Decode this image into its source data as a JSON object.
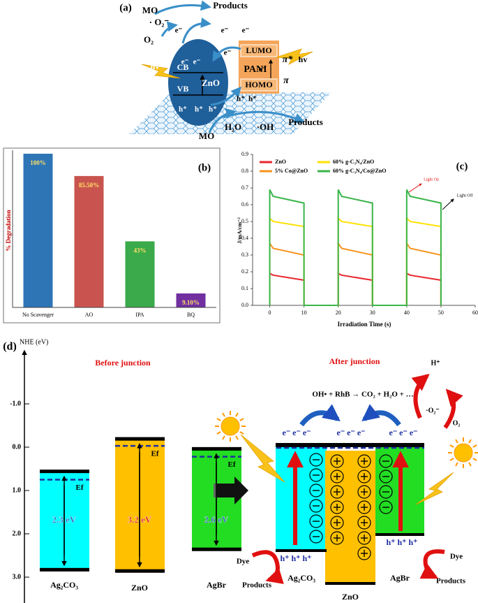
{
  "panel_a": {
    "label": "(a)",
    "mo_top": "MO",
    "superoxide": "· O₂⁻",
    "products_top": "Products",
    "o2": "O₂",
    "electrons": [
      "e⁻",
      "e⁻",
      "e⁻",
      "e⁻",
      "e⁻",
      "e⁻",
      "e⁻"
    ],
    "hv_left": "hv",
    "cb": "CB",
    "vb": "VB",
    "zno": "ZnO",
    "holes": [
      "h⁺",
      "h⁺",
      "h⁺",
      "h⁺",
      "h⁺"
    ],
    "lumo": "LUMO",
    "pani": "PANI",
    "homo": "HOMO",
    "pi_star": "π*",
    "pi": "π",
    "hv_right": "hv",
    "products_bottom": "Products",
    "h2o": "H₂O",
    "oh": "·OH",
    "mo_bottom": "MO"
  },
  "chart_data": [
    {
      "type": "bar",
      "panel_label": "(b)",
      "y_label": "% Degradation",
      "categories": [
        "No Scavenger",
        "AO",
        "IPA",
        "BQ"
      ],
      "values": [
        100,
        85.5,
        43,
        9.1
      ],
      "value_labels": [
        "100%",
        "85.50%",
        "43%",
        "9.10%"
      ],
      "colors": [
        "#2e75b6",
        "#c9544f",
        "#3aaa4a",
        "#7030a0"
      ],
      "ylim": [
        0,
        100
      ]
    },
    {
      "type": "line",
      "panel_label": "(c)",
      "x_label": "Irradiation Time (s)",
      "y_label": "J/mA/cm⁻²",
      "x": [
        0,
        0,
        1,
        10,
        10,
        20,
        20,
        21,
        30,
        30,
        40,
        40,
        41,
        50,
        50
      ],
      "series": [
        {
          "name": "ZnO",
          "color": "#e8262b",
          "values": [
            0,
            0.19,
            0.18,
            0.15,
            0,
            0,
            0.19,
            0.18,
            0.15,
            0,
            0,
            0.19,
            0.18,
            0.15,
            0
          ]
        },
        {
          "name": "5% Co@ZnO",
          "color": "#f7931e",
          "values": [
            0,
            0.37,
            0.34,
            0.3,
            0,
            0,
            0.37,
            0.34,
            0.3,
            0,
            0,
            0.37,
            0.34,
            0.3,
            0
          ]
        },
        {
          "name": "60% g-C₃N₄/ZnO",
          "color": "#ffe000",
          "values": [
            0,
            0.52,
            0.5,
            0.47,
            0,
            0,
            0.52,
            0.5,
            0.47,
            0,
            0,
            0.52,
            0.5,
            0.47,
            0
          ]
        },
        {
          "name": "60% g-C₃N₄/Co@ZnO",
          "color": "#39b54a",
          "values": [
            0,
            0.69,
            0.65,
            0.61,
            0,
            0,
            0.69,
            0.65,
            0.61,
            0,
            0,
            0.69,
            0.65,
            0.61,
            0
          ]
        }
      ],
      "xlim": [
        -5,
        60
      ],
      "xticks": [
        0,
        10,
        20,
        30,
        40,
        50,
        60
      ],
      "ylim": [
        0,
        0.9
      ],
      "yticks": [
        {
          "value": 0,
          "label": "0.0"
        },
        0.1,
        0.2,
        0.3,
        0.4,
        0.5,
        0.6,
        0.7,
        0.8,
        0.9
      ],
      "annotations": [
        "Light On",
        "Light Off"
      ]
    }
  ],
  "panel_d": {
    "label": "(d)",
    "axis_title": "NHE (eV)",
    "axis_ticks": [
      "-1.0",
      "0.0",
      "1.0",
      "2.0",
      "3.0"
    ],
    "before_title": "Before junction",
    "after_title": "After junction",
    "materials": [
      "Ag₂CO₃",
      "ZnO",
      "AgBr"
    ],
    "band_gaps": [
      "2.3 eV",
      "3.2 eV",
      "2.6 eV"
    ],
    "fermi_levels": [
      "Ef",
      "Ef",
      "Ef"
    ],
    "reaction": "OH• + RhB → CO₂ + H₂O + …",
    "h_plus": "H⁺",
    "superoxide": "·O₂⁻",
    "o2": "O₂",
    "electron_groups": [
      "e⁻  e⁻  e⁻",
      "e⁻  e⁻  e⁻",
      "e⁻  e⁻  e⁻"
    ],
    "hole_groups": [
      "h⁺ h⁺ h⁺",
      "h⁺ h⁺ h⁺"
    ],
    "dye": [
      "Dye",
      "Dye"
    ],
    "products": [
      "Products",
      "Products"
    ],
    "after_materials": [
      "Ag₂CO₃",
      "ZnO",
      "AgBr"
    ]
  }
}
